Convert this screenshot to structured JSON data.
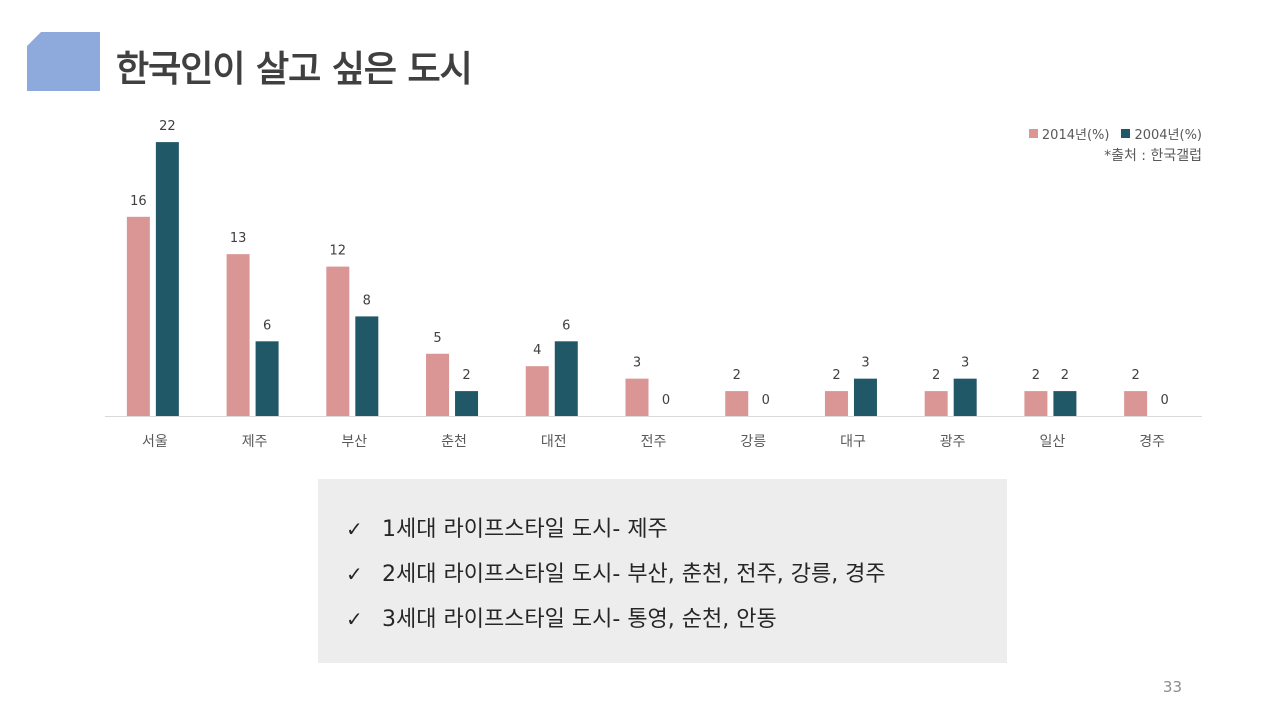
{
  "page": {
    "title": "한국인이 살고 싶은 도시",
    "source": "*출처 : 한국갤럽",
    "page_number": "33"
  },
  "legend": {
    "items": [
      {
        "label": "2014년(%)",
        "color": "#D99694"
      },
      {
        "label": "2004년(%)",
        "color": "#215868"
      }
    ]
  },
  "notes": {
    "icon": "check-mark-icon",
    "items": [
      "1세대 라이프스타일 도시- 제주",
      "2세대 라이프스타일 도시- 부산, 춘천, 전주, 강릉, 경주",
      "3세대 라이프스타일 도시- 통영, 순천, 안동"
    ]
  },
  "chart_data": {
    "type": "bar",
    "categories": [
      "서울",
      "제주",
      "부산",
      "춘천",
      "대전",
      "전주",
      "강릉",
      "대구",
      "광주",
      "일산",
      "경주"
    ],
    "series": [
      {
        "name": "2014년(%)",
        "color": "#D99694",
        "values": [
          16,
          13,
          12,
          5,
          4,
          3,
          2,
          2,
          2,
          2,
          2
        ]
      },
      {
        "name": "2004년(%)",
        "color": "#215868",
        "values": [
          22,
          6,
          8,
          2,
          6,
          0,
          0,
          3,
          3,
          2,
          0
        ]
      }
    ],
    "grid": false,
    "legend_position": "top-right",
    "data_labels": true
  }
}
